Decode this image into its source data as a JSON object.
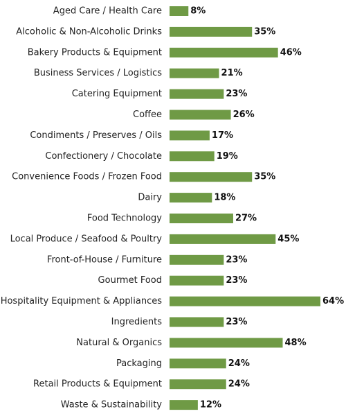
{
  "chart_data": {
    "type": "bar",
    "orientation": "horizontal",
    "categories": [
      "Aged Care / Health Care",
      "Alcoholic & Non-Alcoholic Drinks",
      "Bakery Products & Equipment",
      "Business Services / Logistics",
      "Catering Equipment",
      "Coffee",
      "Condiments / Preserves / Oils",
      "Confectionery / Chocolate",
      "Convenience Foods / Frozen Food",
      "Dairy",
      "Food Technology",
      "Local Produce / Seafood & Poultry",
      "Front-of-House / Furniture",
      "Gourmet Food",
      "Hospitality Equipment & Appliances",
      "Ingredients",
      "Natural & Organics",
      "Packaging",
      "Retail Products & Equipment",
      "Waste & Sustainability"
    ],
    "values": [
      8,
      35,
      46,
      21,
      23,
      26,
      17,
      19,
      35,
      18,
      27,
      45,
      23,
      23,
      64,
      23,
      48,
      24,
      24,
      12
    ],
    "value_labels": [
      "8%",
      "35%",
      "46%",
      "21%",
      "23%",
      "26%",
      "17%",
      "19%",
      "35%",
      "18%",
      "27%",
      "45%",
      "23%",
      "23%",
      "64%",
      "23%",
      "48%",
      "24%",
      "24%",
      "12%"
    ],
    "unit": "%",
    "bar_color": "#6f9a45",
    "xlim": [
      0,
      64
    ],
    "grid": false,
    "legend": "none"
  }
}
